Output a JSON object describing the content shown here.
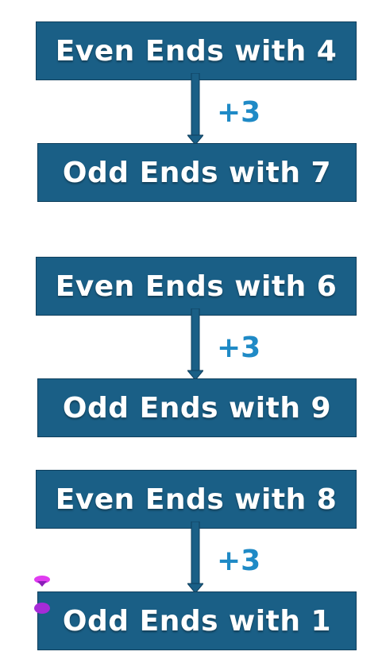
{
  "groups": [
    {
      "even_label": "Even Ends with 4",
      "step_label": "+3",
      "odd_label": "Odd Ends with 7"
    },
    {
      "even_label": "Even Ends with 6",
      "step_label": "+3",
      "odd_label": "Odd Ends with 9"
    },
    {
      "even_label": "Even Ends with 8",
      "step_label": "+3",
      "odd_label": "Odd Ends with 1"
    }
  ],
  "colors": {
    "box_fill": "#1a5f86",
    "box_border": "#0f3f5d",
    "step_text": "#1f8ac6",
    "arrow_fill": "#1a5f86",
    "decor": "#cc33ee"
  },
  "decor_icons": [
    "pink-drop-icon",
    "purple-drop-icon"
  ]
}
